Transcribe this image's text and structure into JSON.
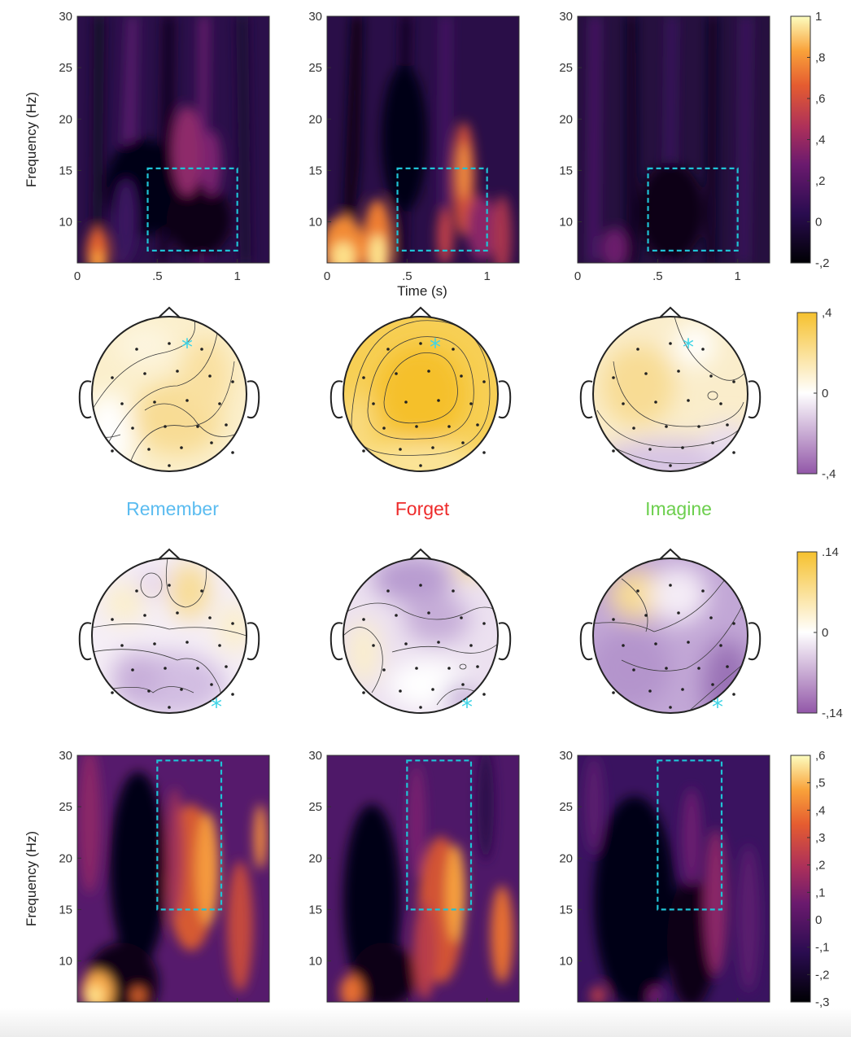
{
  "colors": {
    "remember": "#5bbcf0",
    "forget": "#ee2b2b",
    "imagine": "#6ccf4d",
    "roi_box": "#1fc3d6",
    "electrode_marker": "#3fd4e6"
  },
  "conditions": [
    {
      "key": "remember",
      "label": "Remember"
    },
    {
      "key": "forget",
      "label": "Forget"
    },
    {
      "key": "imagine",
      "label": "Imagine"
    }
  ],
  "spectrograms": {
    "ylabel": "Frequency (Hz)",
    "xlabel": "Time (s)",
    "x_range": [
      0,
      1.2
    ],
    "y_range": [
      6,
      30
    ],
    "x_ticks": [
      "0",
      ".5",
      "1"
    ],
    "y_ticks": [
      "10",
      "15",
      "20",
      "25",
      "30"
    ],
    "colormap": "inferno",
    "top_row": {
      "roi": {
        "t0": 0.44,
        "t1": 1.0,
        "f0": 7.2,
        "f1": 15.2
      },
      "colorbar": {
        "ticks": [
          "1",
          ",8",
          ",6",
          ",4",
          ",2",
          "0",
          "-,2"
        ],
        "range": [
          -0.2,
          1
        ]
      }
    },
    "bottom_row": {
      "roi": {
        "t0": 0.5,
        "t1": 0.9,
        "f0": 15,
        "f1": 29.5
      },
      "colorbar": {
        "ticks": [
          ",6",
          ",5",
          ",4",
          ",3",
          ",2",
          ",1",
          "0",
          "-,1",
          "-,2",
          "-,3"
        ],
        "range": [
          -0.3,
          0.6
        ]
      }
    }
  },
  "topoplots": {
    "colormap": "purple-white-yellow",
    "row_1": {
      "colorbar": {
        "ticks": [
          ",4",
          "0",
          "-,4"
        ],
        "range": [
          -0.4,
          0.4
        ]
      }
    },
    "row_2": {
      "colorbar": {
        "ticks": [
          ".14",
          "0",
          "-,14"
        ],
        "range": [
          -0.14,
          0.14
        ]
      }
    }
  }
}
